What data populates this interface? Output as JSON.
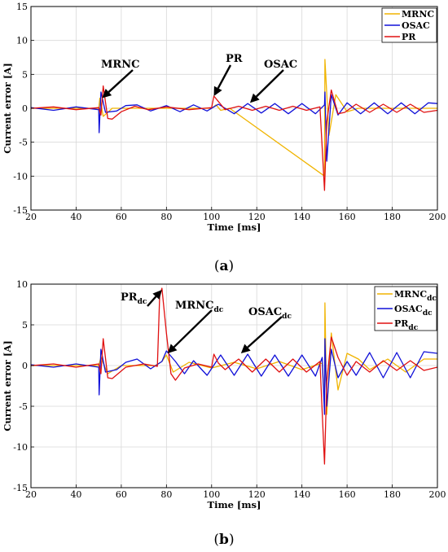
{
  "colors": {
    "mrnc": "#f0b400",
    "osac": "#1010d8",
    "pr": "#e01010"
  },
  "chart_data": [
    {
      "type": "line",
      "caption_letter": "a",
      "xlabel": "Time [ms]",
      "ylabel": "Current error [A]",
      "xlim": [
        20,
        200
      ],
      "ylim": [
        -15,
        15
      ],
      "xticks": [
        20,
        40,
        60,
        80,
        100,
        120,
        140,
        160,
        180,
        200
      ],
      "yticks": [
        -15,
        -10,
        -5,
        0,
        5,
        10,
        15
      ],
      "grid": true,
      "legend_position": "top-right",
      "series": [
        {
          "name": "MRNC",
          "color": "#f0b400",
          "description_points": [
            [
              20,
              0
            ],
            [
              50,
              0
            ],
            [
              50.5,
              1.5
            ],
            [
              52,
              -1.2
            ],
            [
              56,
              0
            ],
            [
              100,
              0
            ],
            [
              102,
              0.5
            ],
            [
              104,
              -0.3
            ],
            [
              108,
              0
            ],
            [
              150,
              -10
            ],
            [
              150.2,
              7.2
            ],
            [
              152,
              -4
            ],
            [
              155,
              2
            ],
            [
              160,
              -0.5
            ],
            [
              165,
              0
            ],
            [
              200,
              0
            ]
          ]
        },
        {
          "name": "OSAC",
          "color": "#1010d8",
          "points": [
            [
              20,
              0.1
            ],
            [
              30,
              -0.3
            ],
            [
              40,
              0.2
            ],
            [
              50,
              -0.2
            ],
            [
              50.2,
              -3.6
            ],
            [
              51,
              2.4
            ],
            [
              53,
              -0.6
            ],
            [
              58,
              -0.4
            ],
            [
              62,
              0.4
            ],
            [
              67,
              0.5
            ],
            [
              73,
              -0.4
            ],
            [
              80,
              0.4
            ],
            [
              86,
              -0.5
            ],
            [
              92,
              0.5
            ],
            [
              98,
              -0.4
            ],
            [
              103,
              0.6
            ],
            [
              110,
              -0.8
            ],
            [
              116,
              0.7
            ],
            [
              122,
              -0.7
            ],
            [
              128,
              0.7
            ],
            [
              134,
              -0.8
            ],
            [
              140,
              0.7
            ],
            [
              146,
              -0.8
            ],
            [
              150,
              0.5
            ],
            [
              150.2,
              2.4
            ],
            [
              151,
              -7.8
            ],
            [
              153,
              2
            ],
            [
              156,
              -1
            ],
            [
              160,
              0.8
            ],
            [
              166,
              -0.8
            ],
            [
              172,
              0.8
            ],
            [
              178,
              -0.8
            ],
            [
              184,
              0.8
            ],
            [
              190,
              -0.8
            ],
            [
              196,
              0.8
            ],
            [
              200,
              0.7
            ]
          ]
        },
        {
          "name": "PR",
          "color": "#e01010",
          "points": [
            [
              20,
              0
            ],
            [
              30,
              0.2
            ],
            [
              40,
              -0.2
            ],
            [
              50,
              0.1
            ],
            [
              51,
              -1
            ],
            [
              52,
              3.3
            ],
            [
              54,
              -1.5
            ],
            [
              56,
              -1.6
            ],
            [
              60,
              -0.5
            ],
            [
              66,
              0.3
            ],
            [
              72,
              -0.2
            ],
            [
              80,
              0.2
            ],
            [
              90,
              -0.2
            ],
            [
              100,
              0.1
            ],
            [
              101,
              1.8
            ],
            [
              103,
              1
            ],
            [
              106,
              -0.2
            ],
            [
              112,
              0.3
            ],
            [
              118,
              -0.3
            ],
            [
              124,
              0.3
            ],
            [
              130,
              -0.3
            ],
            [
              136,
              0.3
            ],
            [
              142,
              -0.3
            ],
            [
              148,
              0.2
            ],
            [
              150,
              -12.1
            ],
            [
              151,
              -2
            ],
            [
              153,
              2.7
            ],
            [
              156,
              -0.8
            ],
            [
              159,
              -0.6
            ],
            [
              164,
              0.6
            ],
            [
              170,
              -0.6
            ],
            [
              176,
              0.6
            ],
            [
              182,
              -0.6
            ],
            [
              188,
              0.6
            ],
            [
              194,
              -0.6
            ],
            [
              200,
              -0.3
            ]
          ]
        }
      ],
      "annotations": [
        {
          "text": "MRNC",
          "sub": "",
          "target": [
            51.5,
            1.5
          ]
        },
        {
          "text": "PR",
          "sub": "",
          "target": [
            101,
            1.8
          ]
        },
        {
          "text": "OSAC",
          "sub": "",
          "target": [
            117,
            0.8
          ]
        }
      ]
    },
    {
      "type": "line",
      "caption_letter": "b",
      "xlabel": "Time [ms]",
      "ylabel": "Current error [A]",
      "xlim": [
        20,
        200
      ],
      "ylim": [
        -15,
        10
      ],
      "xticks": [
        20,
        40,
        60,
        80,
        100,
        120,
        140,
        160,
        180,
        200
      ],
      "yticks": [
        -15,
        -10,
        -5,
        0,
        5,
        10
      ],
      "grid": true,
      "legend_position": "top-right",
      "series": [
        {
          "name": "MRNC",
          "sub": "dc",
          "color": "#f0b400",
          "points": [
            [
              20,
              0
            ],
            [
              50,
              0
            ],
            [
              51,
              1
            ],
            [
              54,
              -1
            ],
            [
              60,
              0
            ],
            [
              75,
              0
            ],
            [
              78,
              0.5
            ],
            [
              80,
              1.3
            ],
            [
              83,
              -0.8
            ],
            [
              90,
              0.4
            ],
            [
              100,
              -0.3
            ],
            [
              110,
              0.4
            ],
            [
              120,
              -0.4
            ],
            [
              130,
              0.5
            ],
            [
              140,
              -0.5
            ],
            [
              149,
              0.3
            ],
            [
              150,
              -5
            ],
            [
              150.2,
              7.7
            ],
            [
              151,
              -6
            ],
            [
              153,
              4
            ],
            [
              156,
              -3
            ],
            [
              160,
              1.5
            ],
            [
              165,
              0.8
            ],
            [
              170,
              -0.5
            ],
            [
              178,
              0.8
            ],
            [
              186,
              -0.8
            ],
            [
              194,
              0.8
            ],
            [
              200,
              0.8
            ]
          ]
        },
        {
          "name": "OSAC",
          "sub": "dc",
          "color": "#1010d8",
          "points": [
            [
              20,
              0.1
            ],
            [
              30,
              -0.2
            ],
            [
              40,
              0.2
            ],
            [
              50,
              -0.2
            ],
            [
              50.2,
              -3.6
            ],
            [
              51,
              2
            ],
            [
              53,
              -0.8
            ],
            [
              58,
              -0.5
            ],
            [
              62,
              0.4
            ],
            [
              67,
              0.8
            ],
            [
              73,
              -0.4
            ],
            [
              78,
              0.5
            ],
            [
              80,
              1.8
            ],
            [
              84,
              0.5
            ],
            [
              88,
              -1
            ],
            [
              92,
              0.6
            ],
            [
              98,
              -1.2
            ],
            [
              104,
              1.3
            ],
            [
              110,
              -1.2
            ],
            [
              116,
              1.4
            ],
            [
              122,
              -1.3
            ],
            [
              128,
              1.3
            ],
            [
              134,
              -1.3
            ],
            [
              140,
              1.3
            ],
            [
              146,
              -1.3
            ],
            [
              149,
              1
            ],
            [
              150,
              -6
            ],
            [
              150.2,
              3.3
            ],
            [
              151,
              -5
            ],
            [
              153,
              2
            ],
            [
              156,
              -1.5
            ],
            [
              160,
              0.5
            ],
            [
              164,
              -1.2
            ],
            [
              170,
              1.6
            ],
            [
              176,
              -1.5
            ],
            [
              182,
              1.6
            ],
            [
              188,
              -1.5
            ],
            [
              194,
              1.7
            ],
            [
              200,
              1.5
            ]
          ]
        },
        {
          "name": "PR",
          "sub": "dc",
          "color": "#e01010",
          "points": [
            [
              20,
              0
            ],
            [
              30,
              0.2
            ],
            [
              40,
              -0.2
            ],
            [
              50,
              0.2
            ],
            [
              51,
              -1
            ],
            [
              52,
              3.3
            ],
            [
              54,
              -1.5
            ],
            [
              56,
              -1.6
            ],
            [
              62,
              -0.2
            ],
            [
              70,
              0.2
            ],
            [
              76,
              -0.1
            ],
            [
              77,
              8.5
            ],
            [
              78,
              9.5
            ],
            [
              80,
              4
            ],
            [
              82,
              -1
            ],
            [
              84,
              -1.8
            ],
            [
              88,
              -0.3
            ],
            [
              94,
              0.2
            ],
            [
              100,
              -0.2
            ],
            [
              101,
              1.4
            ],
            [
              103,
              0.3
            ],
            [
              106,
              -0.5
            ],
            [
              112,
              0.8
            ],
            [
              118,
              -0.8
            ],
            [
              124,
              0.8
            ],
            [
              130,
              -0.8
            ],
            [
              136,
              0.8
            ],
            [
              142,
              -0.8
            ],
            [
              148,
              0.5
            ],
            [
              150,
              -12.1
            ],
            [
              151,
              -2
            ],
            [
              153,
              3.5
            ],
            [
              156,
              1
            ],
            [
              160,
              -1.2
            ],
            [
              164,
              0.5
            ],
            [
              170,
              -0.8
            ],
            [
              176,
              0.6
            ],
            [
              182,
              -0.6
            ],
            [
              188,
              0.6
            ],
            [
              194,
              -0.6
            ],
            [
              200,
              -0.2
            ]
          ]
        }
      ],
      "annotations": [
        {
          "text": "PR",
          "sub": "dc",
          "target": [
            78,
            9.3
          ]
        },
        {
          "text": "MRNC",
          "sub": "dc",
          "target": [
            80.5,
            1.5
          ]
        },
        {
          "text": "OSAC",
          "sub": "dc",
          "target": [
            113,
            1.5
          ]
        }
      ]
    }
  ]
}
